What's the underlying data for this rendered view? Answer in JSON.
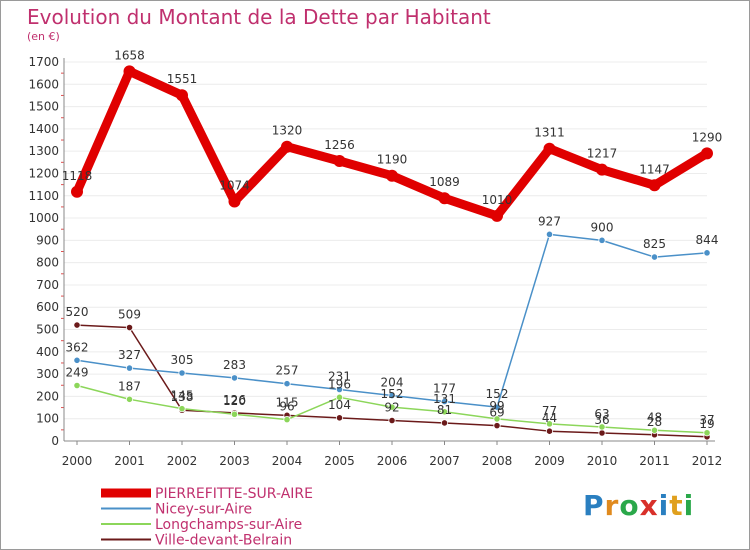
{
  "chart_data": {
    "type": "line",
    "title": "Evolution du Montant de la Dette par Habitant",
    "subtitle": "(en €)",
    "categories": [
      "2000",
      "2001",
      "2002",
      "2003",
      "2004",
      "2005",
      "2006",
      "2007",
      "2008",
      "2009",
      "2010",
      "2011",
      "2012"
    ],
    "ylim": [
      0,
      1700
    ],
    "yticks": [
      0,
      100,
      200,
      300,
      400,
      500,
      600,
      700,
      800,
      900,
      1000,
      1100,
      1200,
      1300,
      1400,
      1500,
      1600,
      1700
    ],
    "series": [
      {
        "name": "PIERREFITTE-SUR-AIRE",
        "color": "#e00000",
        "values": [
          1118,
          1658,
          1551,
          1074,
          1320,
          1256,
          1190,
          1089,
          1010,
          1311,
          1217,
          1147,
          1290
        ],
        "labels": [
          "1118",
          "1658",
          "1551",
          "1074",
          "1320",
          "1256",
          "1190",
          "1089",
          "1010",
          "1311",
          "1217",
          "1147",
          "1290"
        ]
      },
      {
        "name": "Nicey-sur-Aire",
        "color": "#4a90c8",
        "values": [
          362,
          327,
          305,
          283,
          257,
          231,
          204,
          177,
          152,
          927,
          900,
          825,
          844
        ],
        "labels": [
          "362",
          "327",
          "305",
          "283",
          "257",
          "231",
          "204",
          "177",
          "152",
          "927",
          "900",
          "825",
          "844"
        ]
      },
      {
        "name": "Longchamps-sur-Aire",
        "color": "#8cd65a",
        "values": [
          249,
          187,
          145,
          120,
          96,
          196,
          152,
          131,
          99,
          77,
          63,
          48,
          37
        ],
        "labels": [
          "249",
          "187",
          "145",
          "120",
          "96",
          "196",
          "152",
          "131",
          "99",
          "77",
          "63",
          "48",
          "37"
        ]
      },
      {
        "name": "Ville-devant-Belrain",
        "color": "#6b1a1a",
        "values": [
          520,
          509,
          138,
          126,
          115,
          104,
          92,
          81,
          69,
          44,
          36,
          28,
          19
        ],
        "labels": [
          "520",
          "509",
          "138",
          "126",
          "115",
          "104",
          "92",
          "81",
          "69",
          "44",
          "36",
          "28",
          "19"
        ]
      }
    ],
    "legend_position": "bottom-left"
  },
  "logo": {
    "letters": [
      "P",
      "r",
      "o",
      "x",
      "i",
      "t",
      "i"
    ],
    "colors": [
      "#2a7fc0",
      "#e08a1e",
      "#2aa84a",
      "#d8302a",
      "#2a7fc0",
      "#e0a01e",
      "#2aa84a"
    ]
  }
}
